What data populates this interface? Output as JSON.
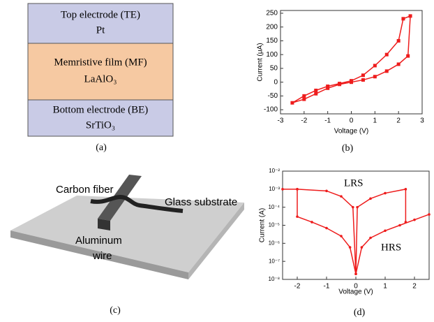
{
  "panel_a": {
    "layers": [
      {
        "name": "Top electrode (TE)",
        "material": "Pt"
      },
      {
        "name": "Memristive film (MF)",
        "material": "LaAlO₃"
      },
      {
        "name": "Bottom electrode (BE)",
        "material": "SrTiO₃"
      }
    ]
  },
  "panel_c": {
    "labels": [
      "Carbon fiber",
      "Glass substrate",
      "Aluminum",
      "wire"
    ]
  },
  "captions": [
    "(a)",
    "(b)",
    "(c)",
    "(d)"
  ],
  "chart_data": [
    {
      "type": "line",
      "x_label": "Voltage (V)",
      "y_label": "Current (μA)",
      "color": "#ee1c1c",
      "marker": "square",
      "x": [
        0,
        0.5,
        1,
        1.5,
        2,
        2.4,
        2.5,
        2.2,
        2,
        1.5,
        1,
        0.5,
        0,
        -0.5,
        -1,
        -1.5,
        -2,
        -2.5,
        -2,
        -1.5,
        -1,
        -0.5,
        0
      ],
      "values": [
        0,
        8,
        20,
        40,
        65,
        95,
        240,
        230,
        150,
        100,
        60,
        25,
        5,
        -5,
        -15,
        -30,
        -50,
        -75,
        -62,
        -42,
        -22,
        -8,
        0
      ],
      "xlim": [
        -3,
        3
      ],
      "xticks": [
        -3,
        -2,
        -1,
        0,
        1,
        2,
        3
      ],
      "ylim": [
        -115,
        260
      ],
      "yticks": [
        -100,
        -50,
        0,
        50,
        100,
        150,
        200,
        250
      ]
    },
    {
      "type": "line",
      "x_label": "Voltage (V)",
      "y_label": "Current (A)",
      "color": "#ee1c1c",
      "marker": "dot",
      "log_y": true,
      "annotations": [
        "LRS",
        "HRS"
      ],
      "x": [
        -2.5,
        -2,
        -2,
        -1.5,
        -1,
        -0.5,
        -0.2,
        0,
        0.2,
        0.5,
        1,
        1.5,
        2,
        2.5,
        null,
        -2,
        -1,
        -0.5,
        -0.1,
        0,
        0.05,
        0.5,
        1,
        1.7,
        1.7
      ],
      "values": [
        0.001,
        0.001,
        3e-05,
        1.5e-05,
        7e-06,
        2.5e-06,
        6e-07,
        2e-08,
        6e-07,
        2e-06,
        5e-06,
        1e-05,
        2e-05,
        4e-05,
        null,
        0.001,
        0.0008,
        0.0004,
        0.0001,
        2e-08,
        0.0001,
        0.0003,
        0.0006,
        0.001,
        1.5e-05
      ],
      "xlim": [
        -2.5,
        2.5
      ],
      "xticks": [
        -2,
        -1,
        0,
        1,
        2
      ],
      "ylim": [
        1e-08,
        0.01
      ],
      "yticks": [
        {
          "value": 1e-08,
          "label": "10⁻⁸"
        },
        {
          "value": 1e-07,
          "label": "10⁻⁷"
        },
        {
          "value": 1e-06,
          "label": "10⁻⁶"
        },
        {
          "value": 1e-05,
          "label": "10⁻⁵"
        },
        {
          "value": 0.0001,
          "label": "10⁻⁴"
        },
        {
          "value": 0.001,
          "label": "10⁻³"
        },
        {
          "value": 0.01,
          "label": "10⁻²"
        }
      ]
    }
  ]
}
